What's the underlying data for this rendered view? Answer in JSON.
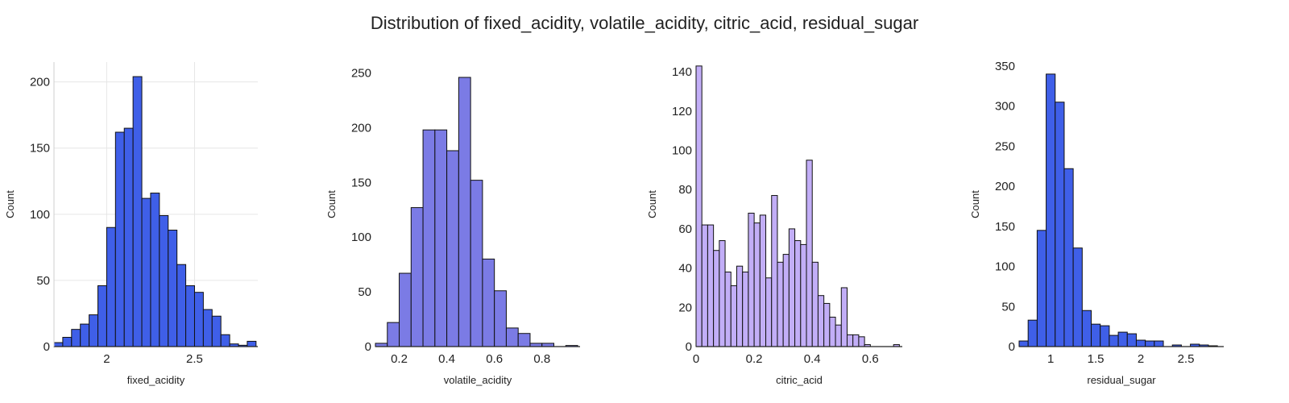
{
  "title": "Distribution of fixed_acidity, volatile_acidity, citric_acid, residual_sugar",
  "chart_data": [
    {
      "type": "bar",
      "subtype": "histogram",
      "xlabel": "fixed_acidity",
      "ylabel": "Count",
      "color": "#3F5FE8",
      "grid": true,
      "xlim": [
        1.7,
        2.86
      ],
      "ylim": [
        0,
        215
      ],
      "xticks": [
        2,
        2.5
      ],
      "yticks": [
        0,
        50,
        100,
        150,
        200
      ],
      "bin_start": 1.7,
      "bin_width": 0.05,
      "values": [
        3,
        7,
        13,
        17,
        24,
        46,
        90,
        162,
        165,
        204,
        112,
        116,
        99,
        88,
        62,
        46,
        41,
        28,
        23,
        9,
        2,
        1,
        4
      ]
    },
    {
      "type": "bar",
      "subtype": "histogram",
      "xlabel": "volatile_acidity",
      "ylabel": "Count",
      "color": "#7B7BE5",
      "grid": false,
      "xlim": [
        0.1,
        0.96
      ],
      "ylim": [
        0,
        260
      ],
      "xticks": [
        0.2,
        0.4,
        0.6,
        0.8
      ],
      "yticks": [
        0,
        50,
        100,
        150,
        200,
        250
      ],
      "bin_start": 0.1,
      "bin_width": 0.05,
      "values": [
        3,
        22,
        67,
        127,
        198,
        198,
        179,
        246,
        152,
        80,
        51,
        17,
        12,
        3,
        3,
        0,
        1
      ]
    },
    {
      "type": "bar",
      "subtype": "histogram",
      "xlabel": "citric_acid",
      "ylabel": "Count",
      "color": "#C2AEF7",
      "grid": false,
      "xlim": [
        0,
        0.71
      ],
      "ylim": [
        0,
        145
      ],
      "xticks": [
        0,
        0.2,
        0.4,
        0.6
      ],
      "yticks": [
        0,
        20,
        40,
        60,
        80,
        100,
        120,
        140
      ],
      "bin_start": 0,
      "bin_width": 0.02,
      "values": [
        143,
        62,
        62,
        49,
        54,
        38,
        31,
        41,
        38,
        68,
        63,
        67,
        35,
        77,
        43,
        47,
        60,
        54,
        52,
        95,
        43,
        26,
        22,
        15,
        11,
        30,
        6,
        6,
        5,
        1,
        0,
        0,
        0,
        0,
        1
      ]
    },
    {
      "type": "bar",
      "subtype": "histogram",
      "xlabel": "residual_sugar",
      "ylabel": "Count",
      "color": "#3F5FE8",
      "grid": false,
      "xlim": [
        0.65,
        2.92
      ],
      "ylim": [
        0,
        355
      ],
      "xticks": [
        1,
        1.5,
        2,
        2.5
      ],
      "yticks": [
        0,
        50,
        100,
        150,
        200,
        250,
        300,
        350
      ],
      "bin_start": 0.65,
      "bin_width": 0.1,
      "values": [
        7,
        33,
        145,
        340,
        305,
        222,
        123,
        45,
        28,
        26,
        14,
        18,
        16,
        8,
        7,
        7,
        0,
        2,
        0,
        3,
        2,
        1
      ]
    }
  ]
}
